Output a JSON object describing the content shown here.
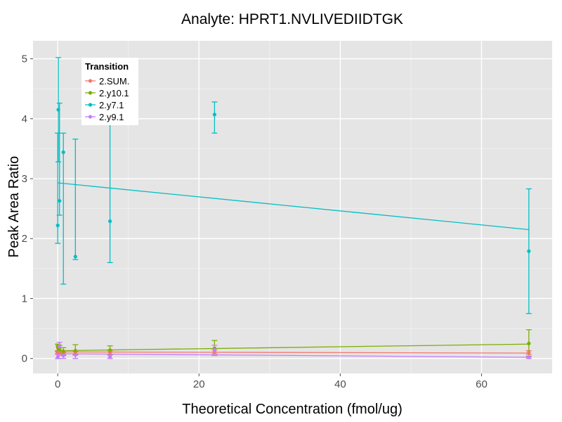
{
  "chart_data": {
    "type": "line",
    "title": "Analyte: HPRT1.NVLIVEDIIDTGK",
    "xlabel": "Theoretical Concentration (fmol/ug)",
    "ylabel": "Peak Area Ratio",
    "xlim": [
      -3.5,
      70
    ],
    "ylim": [
      -0.25,
      5.3
    ],
    "x_ticks": [
      0,
      20,
      40,
      60
    ],
    "y_ticks": [
      0,
      1,
      2,
      3,
      4,
      5
    ],
    "grid": true,
    "legend": {
      "title": "Transition",
      "placement": "top-left"
    },
    "series": [
      {
        "name": "2.SUM.",
        "color": "#F8766D",
        "points": [
          {
            "x": 0,
            "y": 0.1,
            "ymin": 0.07,
            "ymax": 0.13
          },
          {
            "x": 0.08,
            "y": 0.1,
            "ymin": 0.07,
            "ymax": 0.13
          },
          {
            "x": 0.25,
            "y": 0.11,
            "ymin": 0.07,
            "ymax": 0.14
          },
          {
            "x": 0.8,
            "y": 0.1,
            "ymin": 0.07,
            "ymax": 0.13
          },
          {
            "x": 2.5,
            "y": 0.1,
            "ymin": 0.07,
            "ymax": 0.13
          },
          {
            "x": 7.4,
            "y": 0.1,
            "ymin": 0.07,
            "ymax": 0.13
          },
          {
            "x": 22.2,
            "y": 0.11,
            "ymin": 0.08,
            "ymax": 0.14
          },
          {
            "x": 66.7,
            "y": 0.1,
            "ymin": 0.07,
            "ymax": 0.13
          }
        ],
        "fit": [
          [
            0,
            0.11
          ],
          [
            66.7,
            0.09
          ]
        ]
      },
      {
        "name": "2.y10.1",
        "color": "#7CAE00",
        "points": [
          {
            "x": 0,
            "y": 0.19,
            "ymin": 0.12,
            "ymax": 0.24
          },
          {
            "x": 0.08,
            "y": 0.16,
            "ymin": 0.1,
            "ymax": 0.22
          },
          {
            "x": 0.25,
            "y": 0.15,
            "ymin": 0.08,
            "ymax": 0.22
          },
          {
            "x": 0.8,
            "y": 0.12,
            "ymin": 0.05,
            "ymax": 0.18
          },
          {
            "x": 2.5,
            "y": 0.13,
            "ymin": 0.06,
            "ymax": 0.23
          },
          {
            "x": 7.4,
            "y": 0.14,
            "ymin": 0.06,
            "ymax": 0.21
          },
          {
            "x": 22.2,
            "y": 0.17,
            "ymin": 0.05,
            "ymax": 0.3
          },
          {
            "x": 66.7,
            "y": 0.25,
            "ymin": 0.03,
            "ymax": 0.48
          }
        ],
        "fit": [
          [
            0,
            0.13
          ],
          [
            66.7,
            0.24
          ]
        ]
      },
      {
        "name": "2.y7.1",
        "color": "#00BFC4",
        "points": [
          {
            "x": 0,
            "y": 2.22,
            "ymin": 1.92,
            "ymax": 3.76
          },
          {
            "x": 0.08,
            "y": 4.15,
            "ymin": 3.28,
            "ymax": 5.02
          },
          {
            "x": 0.25,
            "y": 2.63,
            "ymin": 2.39,
            "ymax": 4.26
          },
          {
            "x": 0.8,
            "y": 3.44,
            "ymin": 1.24,
            "ymax": 3.76
          },
          {
            "x": 2.5,
            "y": 1.7,
            "ymin": 1.65,
            "ymax": 3.66
          },
          {
            "x": 7.4,
            "y": 2.29,
            "ymin": 1.6,
            "ymax": 4.1
          },
          {
            "x": 22.2,
            "y": 4.07,
            "ymin": 3.76,
            "ymax": 4.28
          },
          {
            "x": 66.7,
            "y": 1.79,
            "ymin": 0.75,
            "ymax": 2.83
          }
        ],
        "fit": [
          [
            0,
            2.93
          ],
          [
            66.7,
            2.15
          ]
        ]
      },
      {
        "name": "2.y9.1",
        "color": "#C77CFF",
        "points": [
          {
            "x": 0,
            "y": 0.02,
            "ymin": 0.0,
            "ymax": 0.08
          },
          {
            "x": 0.08,
            "y": 0.05,
            "ymin": 0.0,
            "ymax": 0.11
          },
          {
            "x": 0.25,
            "y": 0.2,
            "ymin": 0.12,
            "ymax": 0.27
          },
          {
            "x": 0.8,
            "y": 0.05,
            "ymin": 0.0,
            "ymax": 0.1
          },
          {
            "x": 2.5,
            "y": 0.06,
            "ymin": 0.0,
            "ymax": 0.12
          },
          {
            "x": 7.4,
            "y": 0.03,
            "ymin": 0.0,
            "ymax": 0.07
          },
          {
            "x": 22.2,
            "y": 0.14,
            "ymin": 0.05,
            "ymax": 0.22
          },
          {
            "x": 66.7,
            "y": 0.02,
            "ymin": 0.0,
            "ymax": 0.04
          }
        ],
        "fit": [
          [
            0,
            0.08
          ],
          [
            66.7,
            0.02
          ]
        ]
      }
    ]
  },
  "colors": {
    "panel_background": "#E5E5E5",
    "grid_major": "#FFFFFF",
    "grid_minor": "#F2F2F2"
  }
}
